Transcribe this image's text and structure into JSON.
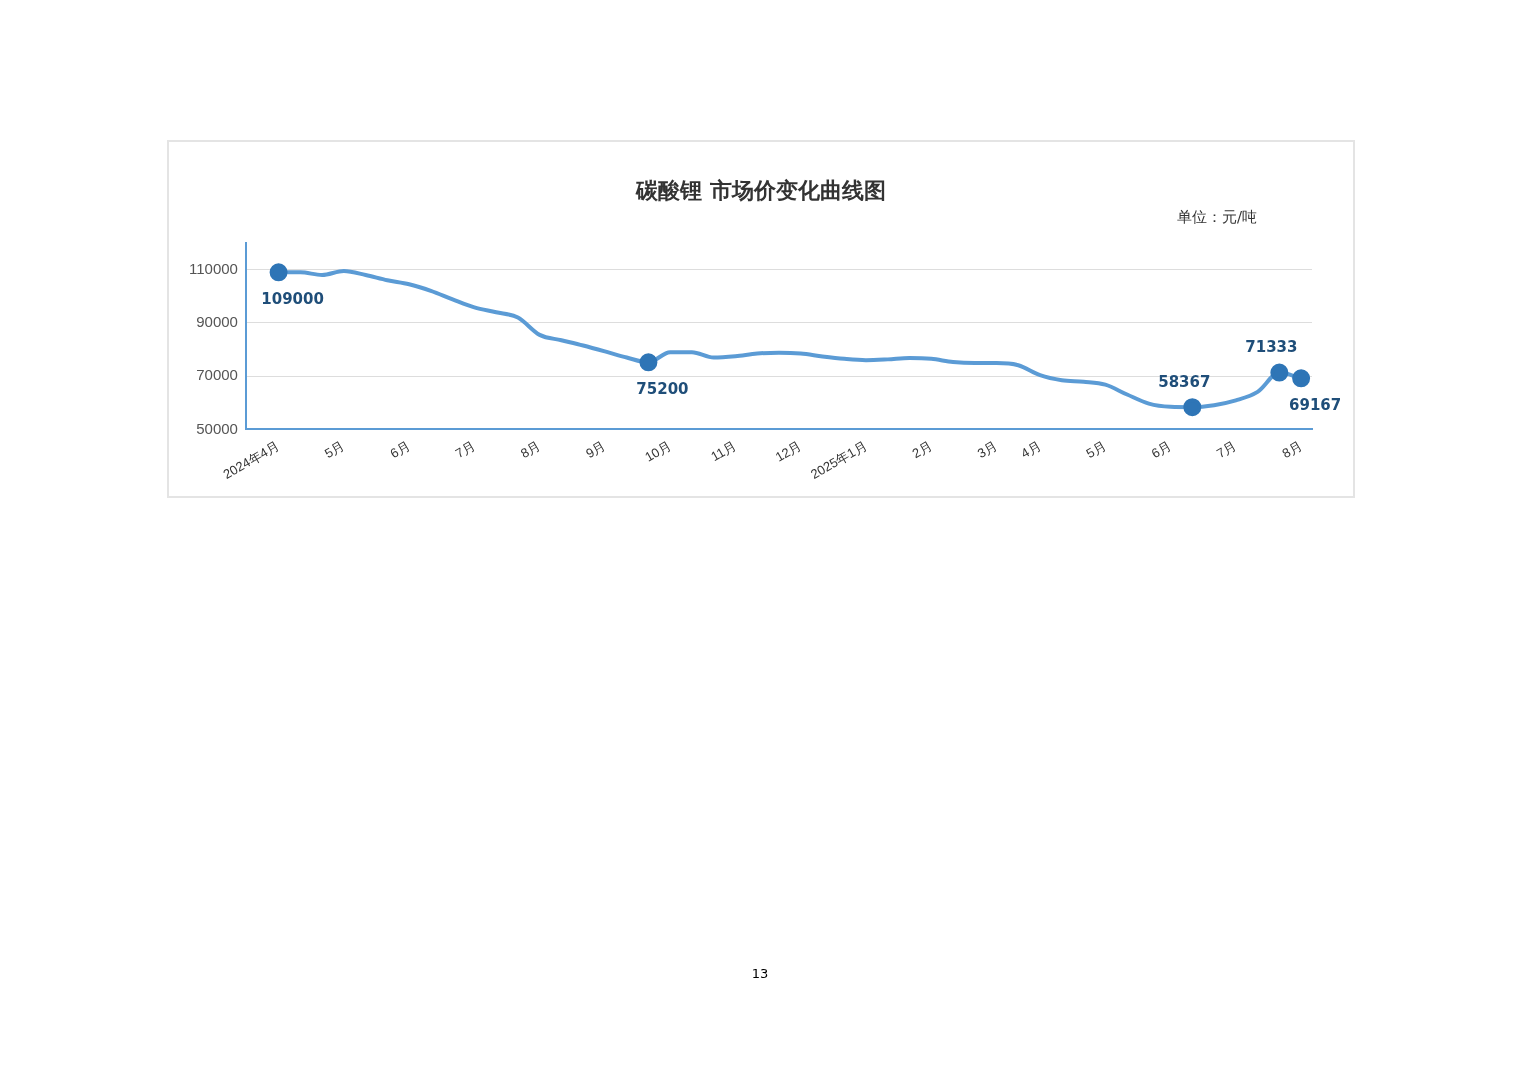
{
  "chart_data": {
    "type": "line",
    "title": "碳酸锂 市场价变化曲线图",
    "subtitle": "单位：元/吨",
    "categories": [
      null,
      "2024年4月",
      null,
      null,
      "5月",
      null,
      null,
      "6月",
      null,
      null,
      "7月",
      null,
      null,
      "8月",
      null,
      null,
      "9月",
      null,
      null,
      "10月",
      null,
      null,
      "11月",
      null,
      null,
      "12月",
      null,
      null,
      "2025年1月",
      null,
      null,
      "2月",
      null,
      null,
      "3月",
      null,
      "4月",
      null,
      null,
      "5月",
      null,
      null,
      "6月",
      null,
      null,
      "7月",
      null,
      null,
      "8月"
    ],
    "series": [
      {
        "color": "#5b9bd5",
        "values": [
          null,
          109000,
          109000,
          108000,
          109500,
          108000,
          106000,
          104500,
          102000,
          98800,
          95800,
          94000,
          92000,
          85500,
          83500,
          81500,
          79300,
          77000,
          75200,
          79000,
          79000,
          77000,
          77500,
          78500,
          78800,
          78500,
          77400,
          76500,
          76000,
          76300,
          76800,
          76500,
          75300,
          74900,
          74900,
          74100,
          70400,
          68500,
          67900,
          66800,
          63100,
          59700,
          58500,
          58367,
          59100,
          60900,
          64100,
          71333,
          69167
        ],
        "value_labels": [
          null,
          "109000",
          null,
          null,
          null,
          null,
          null,
          null,
          null,
          null,
          null,
          null,
          null,
          null,
          null,
          null,
          null,
          null,
          "75200",
          null,
          null,
          null,
          null,
          null,
          null,
          null,
          null,
          null,
          null,
          null,
          null,
          null,
          null,
          null,
          null,
          null,
          null,
          null,
          null,
          null,
          null,
          null,
          null,
          "58367",
          null,
          null,
          null,
          "71333",
          "69167"
        ]
      }
    ],
    "ylim": [
      50000,
      120000
    ],
    "yticks": [
      50000,
      70000,
      90000,
      110000
    ],
    "grid": "y",
    "legend": false,
    "annotations": [
      "13"
    ]
  }
}
